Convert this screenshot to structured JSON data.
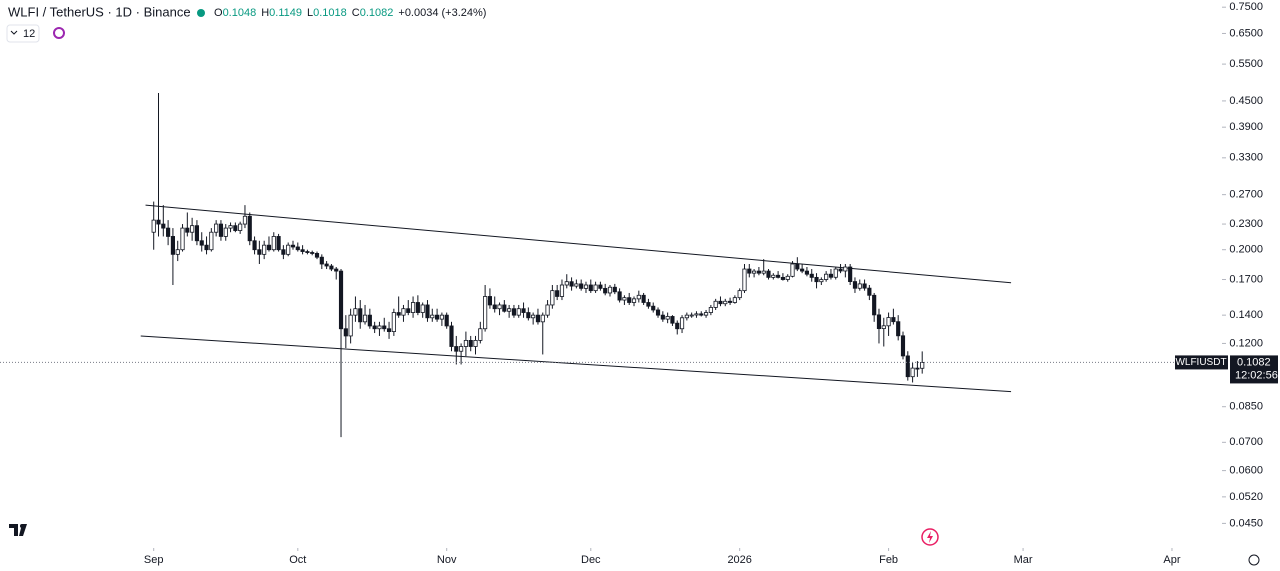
{
  "chart_data": {
    "type": "candlestick",
    "title": "WLFI / TetherUS · 1D · Binance",
    "ohlc_keys": [
      "O",
      "H",
      "L",
      "C"
    ],
    "change": "+0.0034 (+3.24%)",
    "interval": "12",
    "symbol": "WLFIUSDT",
    "countdown": "12:02:56",
    "log_scale": true,
    "up_color": "#ffffff",
    "down_color": "#131722",
    "line_color": "#131722",
    "ylim": [
      0.04,
      0.78
    ],
    "yticks": [
      {
        "value": 0.75,
        "label": "0.7500"
      },
      {
        "value": 0.65,
        "label": "0.6500"
      },
      {
        "value": 0.55,
        "label": "0.5500"
      },
      {
        "value": 0.45,
        "label": "0.4500"
      },
      {
        "value": 0.39,
        "label": "0.3900"
      },
      {
        "value": 0.33,
        "label": "0.3300"
      },
      {
        "value": 0.27,
        "label": "0.2700"
      },
      {
        "value": 0.23,
        "label": "0.2300"
      },
      {
        "value": 0.2,
        "label": "0.2000"
      },
      {
        "value": 0.17,
        "label": "0.1700"
      },
      {
        "value": 0.14,
        "label": "0.1400"
      },
      {
        "value": 0.12,
        "label": "0.1200"
      },
      {
        "value": 0.085,
        "label": "0.0850"
      },
      {
        "value": 0.07,
        "label": "0.0700"
      },
      {
        "value": 0.06,
        "label": "0.0600"
      },
      {
        "value": 0.052,
        "label": "0.0520"
      },
      {
        "value": 0.045,
        "label": "0.0450"
      }
    ],
    "xlim": [
      -32,
      222
    ],
    "xticks": [
      {
        "value": 0,
        "label": "Sep"
      },
      {
        "value": 30,
        "label": "Oct"
      },
      {
        "value": 61,
        "label": "Nov"
      },
      {
        "value": 91,
        "label": "Dec"
      },
      {
        "value": 122,
        "label": "2026"
      },
      {
        "value": 153,
        "label": "Feb"
      },
      {
        "value": 181,
        "label": "Mar"
      },
      {
        "value": 212,
        "label": "Apr"
      }
    ],
    "trendlines": [
      {
        "x": [
          -1.7,
          178.5
        ],
        "y": [
          0.255,
          0.167
        ]
      },
      {
        "x": [
          -2.7,
          178.5
        ],
        "y": [
          0.125,
          0.0923
        ]
      }
    ],
    "ohlc": [
      [
        0.22,
        0.26,
        0.2,
        0.235
      ],
      [
        0.235,
        0.47,
        0.215,
        0.23
      ],
      [
        0.23,
        0.255,
        0.215,
        0.225
      ],
      [
        0.225,
        0.235,
        0.205,
        0.215
      ],
      [
        0.215,
        0.225,
        0.165,
        0.195
      ],
      [
        0.195,
        0.21,
        0.188,
        0.2
      ],
      [
        0.2,
        0.23,
        0.198,
        0.225
      ],
      [
        0.225,
        0.245,
        0.215,
        0.22
      ],
      [
        0.22,
        0.238,
        0.21,
        0.228
      ],
      [
        0.228,
        0.235,
        0.205,
        0.21
      ],
      [
        0.21,
        0.22,
        0.198,
        0.205
      ],
      [
        0.205,
        0.215,
        0.195,
        0.2
      ],
      [
        0.2,
        0.225,
        0.198,
        0.22
      ],
      [
        0.22,
        0.235,
        0.215,
        0.23
      ],
      [
        0.23,
        0.235,
        0.21,
        0.215
      ],
      [
        0.215,
        0.23,
        0.21,
        0.225
      ],
      [
        0.225,
        0.232,
        0.22,
        0.228
      ],
      [
        0.228,
        0.232,
        0.22,
        0.222
      ],
      [
        0.222,
        0.233,
        0.218,
        0.23
      ],
      [
        0.23,
        0.255,
        0.225,
        0.24
      ],
      [
        0.24,
        0.245,
        0.205,
        0.21
      ],
      [
        0.21,
        0.215,
        0.195,
        0.2
      ],
      [
        0.2,
        0.21,
        0.185,
        0.195
      ],
      [
        0.195,
        0.21,
        0.19,
        0.205
      ],
      [
        0.205,
        0.215,
        0.198,
        0.2
      ],
      [
        0.2,
        0.22,
        0.198,
        0.215
      ],
      [
        0.215,
        0.218,
        0.198,
        0.2
      ],
      [
        0.2,
        0.205,
        0.19,
        0.195
      ],
      [
        0.195,
        0.208,
        0.193,
        0.205
      ],
      [
        0.205,
        0.21,
        0.2,
        0.203
      ],
      [
        0.203,
        0.208,
        0.198,
        0.2
      ],
      [
        0.2,
        0.205,
        0.195,
        0.198
      ],
      [
        0.198,
        0.2,
        0.195,
        0.197
      ],
      [
        0.197,
        0.199,
        0.194,
        0.196
      ],
      [
        0.196,
        0.198,
        0.19,
        0.192
      ],
      [
        0.192,
        0.195,
        0.18,
        0.185
      ],
      [
        0.185,
        0.188,
        0.18,
        0.183
      ],
      [
        0.183,
        0.185,
        0.178,
        0.18
      ],
      [
        0.18,
        0.182,
        0.17,
        0.178
      ],
      [
        0.178,
        0.18,
        0.072,
        0.13
      ],
      [
        0.13,
        0.14,
        0.117,
        0.125
      ],
      [
        0.125,
        0.145,
        0.12,
        0.14
      ],
      [
        0.14,
        0.155,
        0.135,
        0.145
      ],
      [
        0.145,
        0.152,
        0.13,
        0.135
      ],
      [
        0.135,
        0.148,
        0.133,
        0.14
      ],
      [
        0.14,
        0.145,
        0.13,
        0.132
      ],
      [
        0.132,
        0.135,
        0.127,
        0.13
      ],
      [
        0.13,
        0.135,
        0.125,
        0.132
      ],
      [
        0.132,
        0.138,
        0.128,
        0.13
      ],
      [
        0.13,
        0.135,
        0.123,
        0.128
      ],
      [
        0.128,
        0.145,
        0.125,
        0.142
      ],
      [
        0.142,
        0.155,
        0.138,
        0.14
      ],
      [
        0.14,
        0.148,
        0.135,
        0.145
      ],
      [
        0.145,
        0.152,
        0.14,
        0.142
      ],
      [
        0.142,
        0.155,
        0.138,
        0.15
      ],
      [
        0.15,
        0.156,
        0.14,
        0.142
      ],
      [
        0.142,
        0.15,
        0.138,
        0.148
      ],
      [
        0.148,
        0.152,
        0.135,
        0.138
      ],
      [
        0.138,
        0.145,
        0.135,
        0.14
      ],
      [
        0.14,
        0.145,
        0.135,
        0.137
      ],
      [
        0.137,
        0.142,
        0.132,
        0.14
      ],
      [
        0.14,
        0.142,
        0.13,
        0.132
      ],
      [
        0.132,
        0.135,
        0.115,
        0.118
      ],
      [
        0.118,
        0.125,
        0.107,
        0.115
      ],
      [
        0.115,
        0.12,
        0.107,
        0.118
      ],
      [
        0.118,
        0.128,
        0.112,
        0.122
      ],
      [
        0.122,
        0.125,
        0.115,
        0.118
      ],
      [
        0.118,
        0.125,
        0.113,
        0.122
      ],
      [
        0.122,
        0.135,
        0.12,
        0.13
      ],
      [
        0.13,
        0.165,
        0.128,
        0.155
      ],
      [
        0.155,
        0.162,
        0.145,
        0.148
      ],
      [
        0.148,
        0.155,
        0.142,
        0.145
      ],
      [
        0.145,
        0.15,
        0.14,
        0.148
      ],
      [
        0.148,
        0.152,
        0.142,
        0.143
      ],
      [
        0.143,
        0.148,
        0.138,
        0.145
      ],
      [
        0.145,
        0.148,
        0.138,
        0.14
      ],
      [
        0.14,
        0.148,
        0.138,
        0.145
      ],
      [
        0.145,
        0.15,
        0.138,
        0.142
      ],
      [
        0.142,
        0.146,
        0.136,
        0.138
      ],
      [
        0.138,
        0.142,
        0.133,
        0.14
      ],
      [
        0.14,
        0.145,
        0.133,
        0.135
      ],
      [
        0.135,
        0.142,
        0.113,
        0.14
      ],
      [
        0.14,
        0.152,
        0.138,
        0.148
      ],
      [
        0.148,
        0.165,
        0.145,
        0.16
      ],
      [
        0.16,
        0.165,
        0.152,
        0.155
      ],
      [
        0.155,
        0.17,
        0.152,
        0.165
      ],
      [
        0.165,
        0.175,
        0.162,
        0.168
      ],
      [
        0.168,
        0.172,
        0.16,
        0.164
      ],
      [
        0.164,
        0.17,
        0.162,
        0.166
      ],
      [
        0.166,
        0.17,
        0.16,
        0.162
      ],
      [
        0.162,
        0.168,
        0.158,
        0.165
      ],
      [
        0.165,
        0.17,
        0.158,
        0.16
      ],
      [
        0.16,
        0.168,
        0.158,
        0.165
      ],
      [
        0.165,
        0.168,
        0.16,
        0.162
      ],
      [
        0.162,
        0.166,
        0.156,
        0.158
      ],
      [
        0.158,
        0.165,
        0.155,
        0.163
      ],
      [
        0.163,
        0.166,
        0.157,
        0.159
      ],
      [
        0.159,
        0.162,
        0.15,
        0.152
      ],
      [
        0.152,
        0.156,
        0.148,
        0.154
      ],
      [
        0.154,
        0.158,
        0.148,
        0.15
      ],
      [
        0.15,
        0.155,
        0.147,
        0.153
      ],
      [
        0.153,
        0.16,
        0.15,
        0.156
      ],
      [
        0.156,
        0.158,
        0.148,
        0.15
      ],
      [
        0.15,
        0.153,
        0.145,
        0.147
      ],
      [
        0.147,
        0.15,
        0.142,
        0.144
      ],
      [
        0.144,
        0.146,
        0.138,
        0.14
      ],
      [
        0.14,
        0.143,
        0.135,
        0.137
      ],
      [
        0.137,
        0.142,
        0.134,
        0.139
      ],
      [
        0.139,
        0.14,
        0.132,
        0.134
      ],
      [
        0.134,
        0.136,
        0.126,
        0.13
      ],
      [
        0.13,
        0.14,
        0.127,
        0.138
      ],
      [
        0.138,
        0.142,
        0.136,
        0.14
      ],
      [
        0.14,
        0.142,
        0.138,
        0.1401
      ],
      [
        0.1401,
        0.143,
        0.138,
        0.141
      ],
      [
        0.141,
        0.143,
        0.139,
        0.14
      ],
      [
        0.14,
        0.144,
        0.138,
        0.142
      ],
      [
        0.142,
        0.148,
        0.14,
        0.146
      ],
      [
        0.146,
        0.153,
        0.144,
        0.151
      ],
      [
        0.151,
        0.155,
        0.147,
        0.149
      ],
      [
        0.149,
        0.153,
        0.147,
        0.151
      ],
      [
        0.151,
        0.154,
        0.148,
        0.15
      ],
      [
        0.15,
        0.156,
        0.149,
        0.154
      ],
      [
        0.154,
        0.162,
        0.152,
        0.16
      ],
      [
        0.16,
        0.185,
        0.158,
        0.18
      ],
      [
        0.18,
        0.185,
        0.172,
        0.176
      ],
      [
        0.176,
        0.18,
        0.172,
        0.178
      ],
      [
        0.178,
        0.182,
        0.174,
        0.176
      ],
      [
        0.176,
        0.19,
        0.174,
        0.178
      ],
      [
        0.178,
        0.18,
        0.17,
        0.172
      ],
      [
        0.172,
        0.176,
        0.17,
        0.174
      ],
      [
        0.174,
        0.178,
        0.171,
        0.172
      ],
      [
        0.172,
        0.176,
        0.169,
        0.17
      ],
      [
        0.17,
        0.175,
        0.168,
        0.173
      ],
      [
        0.173,
        0.188,
        0.172,
        0.185
      ],
      [
        0.185,
        0.192,
        0.178,
        0.18
      ],
      [
        0.18,
        0.185,
        0.176,
        0.178
      ],
      [
        0.178,
        0.182,
        0.173,
        0.175
      ],
      [
        0.175,
        0.18,
        0.168,
        0.172
      ],
      [
        0.172,
        0.176,
        0.162,
        0.168
      ],
      [
        0.168,
        0.172,
        0.165,
        0.17
      ],
      [
        0.17,
        0.178,
        0.168,
        0.175
      ],
      [
        0.175,
        0.18,
        0.17,
        0.1721
      ],
      [
        0.1721,
        0.182,
        0.17,
        0.18
      ],
      [
        0.18,
        0.185,
        0.176,
        0.1781
      ],
      [
        0.1781,
        0.185,
        0.172,
        0.182
      ],
      [
        0.182,
        0.185,
        0.165,
        0.1681
      ],
      [
        0.1681,
        0.172,
        0.158,
        0.1621
      ],
      [
        0.1621,
        0.17,
        0.16,
        0.166
      ],
      [
        0.166,
        0.17,
        0.16,
        0.1622
      ],
      [
        0.1622,
        0.165,
        0.152,
        0.156
      ],
      [
        0.156,
        0.158,
        0.135,
        0.1402
      ],
      [
        0.1402,
        0.145,
        0.12,
        0.1301
      ],
      [
        0.1301,
        0.138,
        0.118,
        0.1321
      ],
      [
        0.1321,
        0.142,
        0.125,
        0.1382
      ],
      [
        0.1382,
        0.145,
        0.133,
        0.1351
      ],
      [
        0.1351,
        0.14,
        0.122,
        0.1251
      ],
      [
        0.1251,
        0.128,
        0.11,
        0.1121
      ],
      [
        0.1121,
        0.115,
        0.098,
        0.1001
      ],
      [
        0.1001,
        0.108,
        0.097,
        0.1049
      ],
      [
        0.1049,
        0.109,
        0.1,
        0.1048
      ],
      [
        0.1048,
        0.1149,
        0.1018,
        0.1082
      ]
    ]
  }
}
